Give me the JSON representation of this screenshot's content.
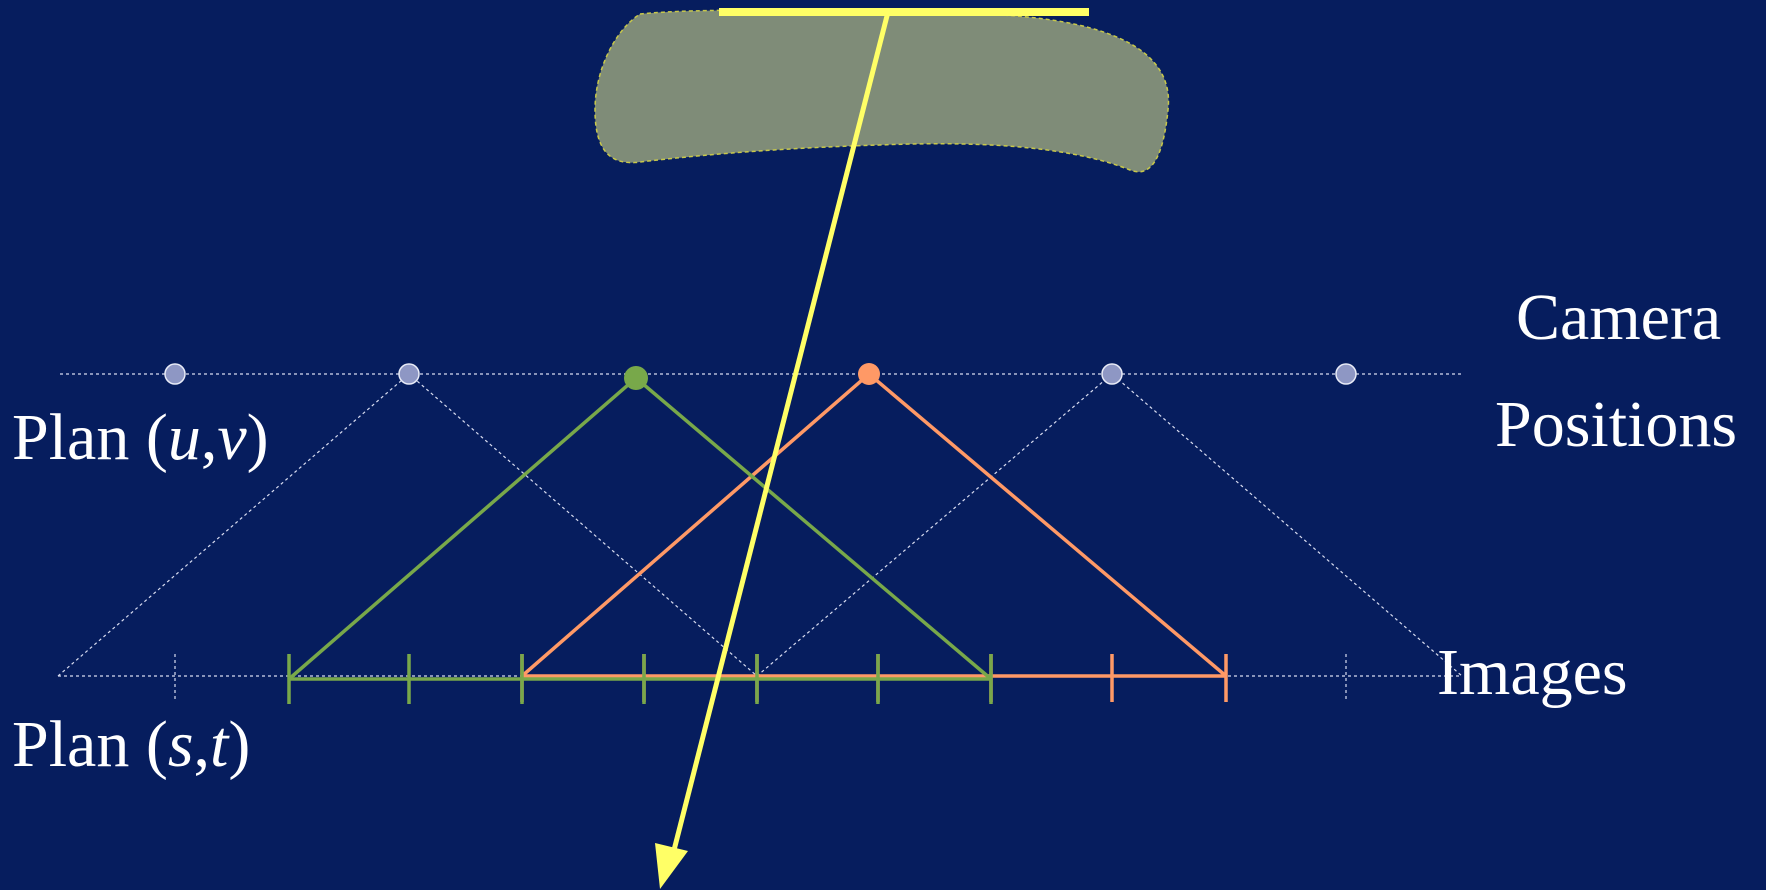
{
  "labels": {
    "camera_line1": "Camera",
    "camera_line2": "Positions",
    "images": "Images",
    "plan_uv": {
      "prefix": "Plan (",
      "var1": "u",
      "sep": ",",
      "var2": "v",
      "suffix": ")"
    },
    "plan_st": {
      "prefix": "Plan (",
      "var1": "s",
      "sep": ",",
      "var2": "t",
      "suffix": ")"
    }
  },
  "colors": {
    "background": "#061d5e",
    "object_fill": "#7f8c78",
    "object_outline": "#c8c84a",
    "ray": "#ffff66",
    "green_camera": "#78a84a",
    "orange_camera": "#ff9966",
    "inactive": "#c8cde6"
  },
  "camera_positions": [
    {
      "id": "cam-1",
      "state": "inactive"
    },
    {
      "id": "cam-2",
      "state": "inactive"
    },
    {
      "id": "cam-3",
      "state": "selected-green"
    },
    {
      "id": "cam-4",
      "state": "selected-orange"
    },
    {
      "id": "cam-5",
      "state": "inactive"
    },
    {
      "id": "cam-6",
      "state": "inactive"
    }
  ]
}
